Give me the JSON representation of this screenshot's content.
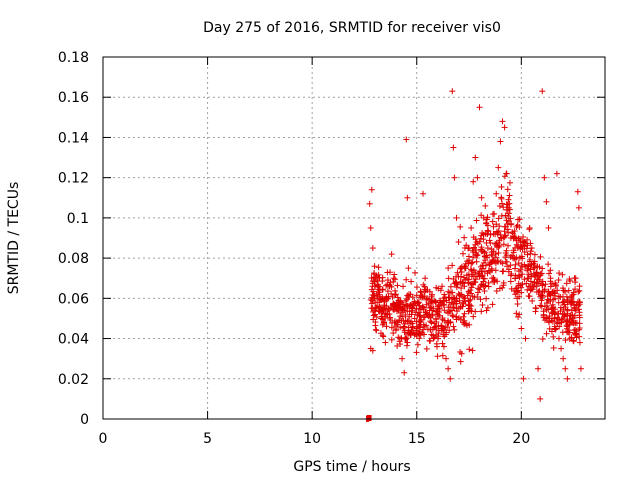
{
  "chart_data": {
    "type": "scatter",
    "title": "Day 275 of 2016, SRMTID for receiver vis0",
    "xlabel": "GPS time / hours",
    "ylabel": "SRMTID / TECUs",
    "xlim": [
      0,
      24
    ],
    "ylim": [
      0,
      0.18
    ],
    "xticks": [
      "0",
      "5",
      "10",
      "15",
      "20"
    ],
    "xtick_values": [
      0,
      5,
      10,
      15,
      20
    ],
    "yticks": [
      "0",
      "0.02",
      "0.04",
      "0.06",
      "0.08",
      "0.1",
      "0.12",
      "0.14",
      "0.16",
      "0.18"
    ],
    "ytick_values": [
      0,
      0.02,
      0.04,
      0.06,
      0.08,
      0.1,
      0.12,
      0.14,
      0.16,
      0.18
    ],
    "grid": true,
    "marker": "+",
    "series_color": "#e00000",
    "data_start_hour": 12.6,
    "data_end_hour": 22.9,
    "series": [
      {
        "points": [
          [
            12.6,
            0.0
          ],
          [
            12.65,
            0.0
          ],
          [
            12.7,
            0.0
          ],
          [
            12.75,
            0.107
          ],
          [
            12.8,
            0.095
          ],
          [
            12.85,
            0.114
          ],
          [
            12.9,
            0.085
          ],
          [
            12.95,
            0.072
          ],
          [
            12.8,
            0.035
          ],
          [
            12.9,
            0.034
          ],
          [
            13.0,
            0.066
          ],
          [
            13.1,
            0.06
          ],
          [
            13.2,
            0.058
          ],
          [
            13.3,
            0.05
          ],
          [
            13.4,
            0.041
          ],
          [
            13.5,
            0.038
          ],
          [
            13.6,
            0.052
          ],
          [
            13.7,
            0.066
          ],
          [
            13.8,
            0.082
          ],
          [
            13.9,
            0.07
          ],
          [
            14.0,
            0.062
          ],
          [
            14.1,
            0.048
          ],
          [
            14.2,
            0.04
          ],
          [
            14.3,
            0.03
          ],
          [
            14.4,
            0.023
          ],
          [
            14.5,
            0.139
          ],
          [
            14.55,
            0.11
          ],
          [
            14.6,
            0.075
          ],
          [
            14.7,
            0.062
          ],
          [
            14.8,
            0.055
          ],
          [
            14.9,
            0.05
          ],
          [
            15.0,
            0.045
          ],
          [
            15.1,
            0.058
          ],
          [
            15.2,
            0.063
          ],
          [
            15.3,
            0.112
          ],
          [
            15.4,
            0.07
          ],
          [
            15.5,
            0.06
          ],
          [
            15.6,
            0.052
          ],
          [
            15.7,
            0.048
          ],
          [
            15.8,
            0.04
          ],
          [
            15.9,
            0.046
          ],
          [
            16.0,
            0.052
          ],
          [
            16.1,
            0.058
          ],
          [
            16.2,
            0.044
          ],
          [
            16.3,
            0.036
          ],
          [
            16.4,
            0.03
          ],
          [
            16.5,
            0.025
          ],
          [
            16.6,
            0.02
          ],
          [
            16.7,
            0.163
          ],
          [
            16.75,
            0.135
          ],
          [
            16.8,
            0.12
          ],
          [
            16.9,
            0.1
          ],
          [
            17.0,
            0.088
          ],
          [
            17.1,
            0.075
          ],
          [
            17.2,
            0.068
          ],
          [
            17.3,
            0.06
          ],
          [
            17.4,
            0.07
          ],
          [
            17.5,
            0.085
          ],
          [
            17.6,
            0.095
          ],
          [
            17.7,
            0.118
          ],
          [
            17.8,
            0.13
          ],
          [
            17.9,
            0.12
          ],
          [
            18.0,
            0.155
          ],
          [
            18.1,
            0.11
          ],
          [
            18.2,
            0.1
          ],
          [
            18.3,
            0.092
          ],
          [
            18.4,
            0.085
          ],
          [
            18.5,
            0.078
          ],
          [
            18.6,
            0.07
          ],
          [
            18.7,
            0.102
          ],
          [
            18.8,
            0.112
          ],
          [
            18.9,
            0.125
          ],
          [
            19.0,
            0.138
          ],
          [
            19.1,
            0.148
          ],
          [
            19.2,
            0.145
          ],
          [
            19.3,
            0.122
          ],
          [
            19.4,
            0.105
          ],
          [
            19.5,
            0.09
          ],
          [
            19.6,
            0.08
          ],
          [
            19.7,
            0.07
          ],
          [
            19.8,
            0.06
          ],
          [
            19.9,
            0.052
          ],
          [
            20.0,
            0.045
          ],
          [
            20.1,
            0.02
          ],
          [
            20.2,
            0.04
          ],
          [
            20.3,
            0.07
          ],
          [
            20.4,
            0.095
          ],
          [
            20.5,
            0.085
          ],
          [
            20.6,
            0.075
          ],
          [
            20.7,
            0.055
          ],
          [
            20.8,
            0.025
          ],
          [
            20.9,
            0.01
          ],
          [
            21.0,
            0.163
          ],
          [
            21.1,
            0.12
          ],
          [
            21.2,
            0.108
          ],
          [
            21.3,
            0.095
          ],
          [
            21.4,
            0.07
          ],
          [
            21.5,
            0.055
          ],
          [
            21.6,
            0.045
          ],
          [
            21.7,
            0.122
          ],
          [
            21.8,
            0.04
          ],
          [
            21.9,
            0.035
          ],
          [
            22.0,
            0.03
          ],
          [
            22.1,
            0.025
          ],
          [
            22.2,
            0.02
          ],
          [
            22.3,
            0.048
          ],
          [
            22.4,
            0.058
          ],
          [
            22.5,
            0.062
          ],
          [
            22.6,
            0.07
          ],
          [
            22.7,
            0.113
          ],
          [
            22.75,
            0.105
          ],
          [
            22.8,
            0.058
          ],
          [
            22.85,
            0.025
          ]
        ]
      }
    ]
  }
}
